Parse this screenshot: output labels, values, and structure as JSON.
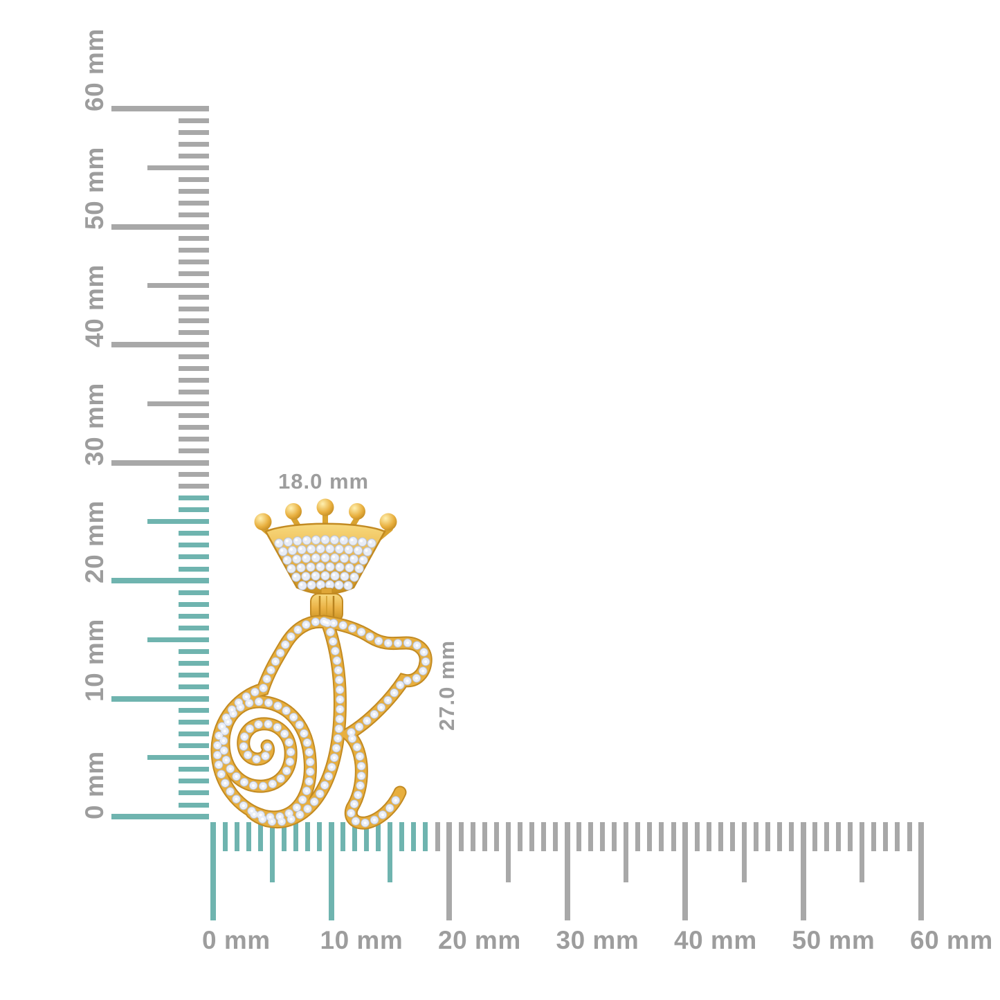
{
  "theme": {
    "background": "#ffffff",
    "tick": "#a8a8a8",
    "highlight": "#6fb4af",
    "label": "#9d9d9d",
    "gold-light": "#f6d36b",
    "gold-mid": "#e8af3e",
    "gold-dark": "#c28a22",
    "diamond": "#e9edf6",
    "diamond-shade": "#b9c3d6"
  },
  "rulers": {
    "unit": "mm",
    "vertical": {
      "orientation": "vertical",
      "range_mm": [
        0,
        60
      ],
      "label_step_mm": 10,
      "labels": [
        "0 mm",
        "10 mm",
        "20 mm",
        "30 mm",
        "40 mm",
        "50 mm",
        "60 mm"
      ],
      "highlight_extent_mm": 27
    },
    "horizontal": {
      "orientation": "horizontal",
      "range_mm": [
        0,
        60
      ],
      "label_step_mm": 10,
      "labels": [
        "0 mm",
        "10 mm",
        "20 mm",
        "30 mm",
        "40 mm",
        "50 mm",
        "60 mm"
      ],
      "highlight_extent_mm": 18
    }
  },
  "measurements": {
    "width_label": "18.0 mm",
    "height_label": "27.0 mm"
  },
  "pendant": {
    "description": "Crowned script initial R pendant in yellow gold with diamond pave",
    "parts": [
      "crown",
      "bail-hinge",
      "initial-R"
    ]
  }
}
